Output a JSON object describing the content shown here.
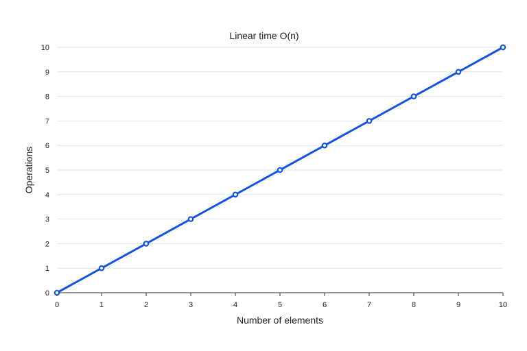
{
  "chart_data": {
    "type": "line",
    "title": "Linear time O(n)",
    "xlabel": "Number of elements",
    "ylabel": "Operations",
    "x": [
      0,
      1,
      2,
      3,
      4,
      5,
      6,
      7,
      8,
      9,
      10
    ],
    "series": [
      {
        "values": [
          0,
          1,
          2,
          3,
          4,
          5,
          6,
          7,
          8,
          9,
          10
        ],
        "color": "#1155e6"
      }
    ],
    "xlim": [
      0,
      10
    ],
    "ylim": [
      0,
      10
    ],
    "xticks": [
      0,
      1,
      2,
      3,
      4,
      5,
      6,
      7,
      8,
      9,
      10
    ],
    "yticks": [
      0,
      1,
      2,
      3,
      4,
      5,
      6,
      7,
      8,
      9,
      10
    ],
    "grid": true,
    "legend": "none",
    "markers": "hollow-circle"
  }
}
